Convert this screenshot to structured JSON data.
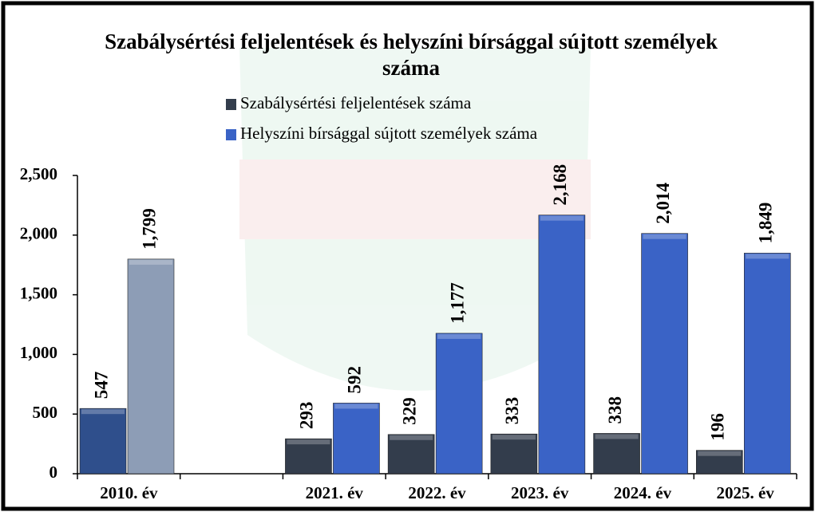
{
  "chart_data": {
    "type": "bar",
    "title": "Szabálysértési feljelentések és helyszíni bírsággal sújtott személyek száma",
    "categories": [
      "2010. év",
      null,
      "2021. év",
      "2022. év",
      "2023. év",
      "2024. év",
      "2025. év"
    ],
    "series": [
      {
        "name": "Szabálysértési feljelentések száma",
        "color": "#333d4c",
        "colors": [
          "#2f4f8c",
          null,
          "#333d4c",
          "#333d4c",
          "#333d4c",
          "#333d4c",
          "#333d4c"
        ],
        "values": [
          547,
          null,
          293,
          329,
          333,
          338,
          196
        ]
      },
      {
        "name": "Helyszíni bírsággal sújtott személyek száma",
        "color": "#3a63c6",
        "colors": [
          "#8d9db6",
          null,
          "#3a63c6",
          "#3a63c6",
          "#3a63c6",
          "#3a63c6",
          "#3a63c6"
        ],
        "values": [
          1799,
          null,
          592,
          1177,
          2168,
          2014,
          1849
        ],
        "value_labels": [
          "1,799",
          null,
          "592",
          "1,177",
          "2,168",
          "2,014",
          "1,849"
        ]
      }
    ],
    "ylim": [
      0,
      2500
    ],
    "yticks": [
      0,
      500,
      {
        "value": 1000,
        "label": "1,000"
      },
      {
        "value": 1500,
        "label": "1,500"
      },
      {
        "value": 2000,
        "label": "2,000"
      },
      {
        "value": 2500,
        "label": "2,500"
      }
    ],
    "grid": false
  }
}
